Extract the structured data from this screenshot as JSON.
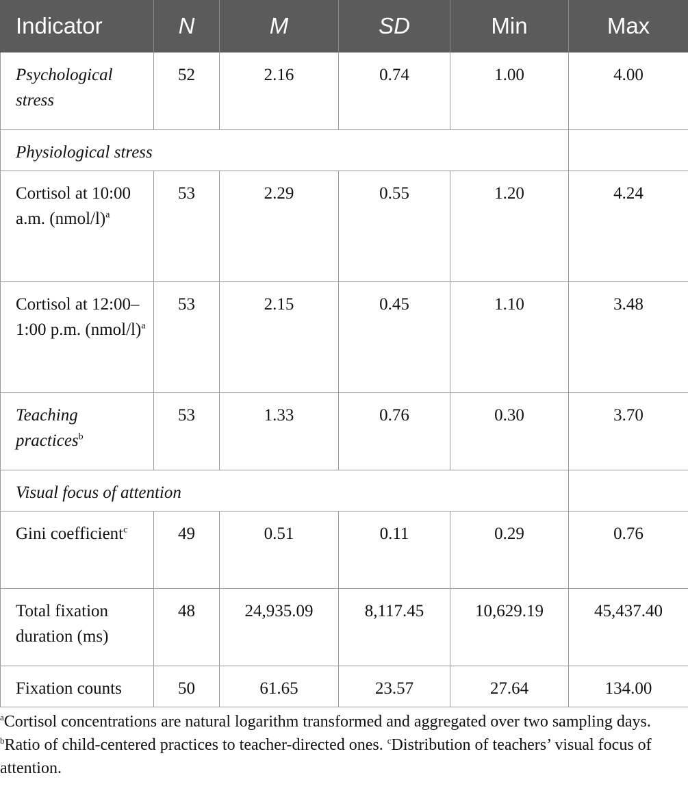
{
  "table": {
    "headers": [
      "Indicator",
      "N",
      "M",
      "SD",
      "Min",
      "Max"
    ],
    "rows": {
      "psych": {
        "label": "Psychological stress",
        "n": "52",
        "m": "2.16",
        "sd": "0.74",
        "min": "1.00",
        "max": "4.00"
      },
      "phys_header": {
        "label": "Physiological stress"
      },
      "cort1": {
        "label": "Cortisol at 10:00 a.m. (nmol/l)",
        "sup": "a",
        "n": "53",
        "m": "2.29",
        "sd": "0.55",
        "min": "1.20",
        "max": "4.24"
      },
      "cort2": {
        "label": "Cortisol at 12:00–1:00 p.m. (nmol/l)",
        "sup": "a",
        "n": "53",
        "m": "2.15",
        "sd": "0.45",
        "min": "1.10",
        "max": "3.48"
      },
      "teach": {
        "label": "Teaching practices",
        "sup": "b",
        "n": "53",
        "m": "1.33",
        "sd": "0.76",
        "min": "0.30",
        "max": "3.70"
      },
      "visual_header": {
        "label": "Visual focus of attention"
      },
      "gini": {
        "label": "Gini coefficient",
        "sup": "c",
        "n": "49",
        "m": "0.51",
        "sd": "0.11",
        "min": "0.29",
        "max": "0.76"
      },
      "total": {
        "label": "Total fixation duration (ms)",
        "n": "48",
        "m": "24,935.09",
        "sd": "8,117.45",
        "min": "10,629.19",
        "max": "45,437.40"
      },
      "count": {
        "label": "Fixation counts",
        "n": "50",
        "m": "61.65",
        "sd": "23.57",
        "min": "27.64",
        "max": "134.00"
      }
    }
  },
  "footnotes": {
    "a_mark": "a",
    "a_text": "Cortisol concentrations are natural logarithm transformed and aggregated over two sampling days. ",
    "b_mark": "b",
    "b_text": "Ratio of child-centered practices to teacher-directed ones. ",
    "c_mark": "c",
    "c_text": "Distribution of teachers’ visual focus of attention."
  }
}
